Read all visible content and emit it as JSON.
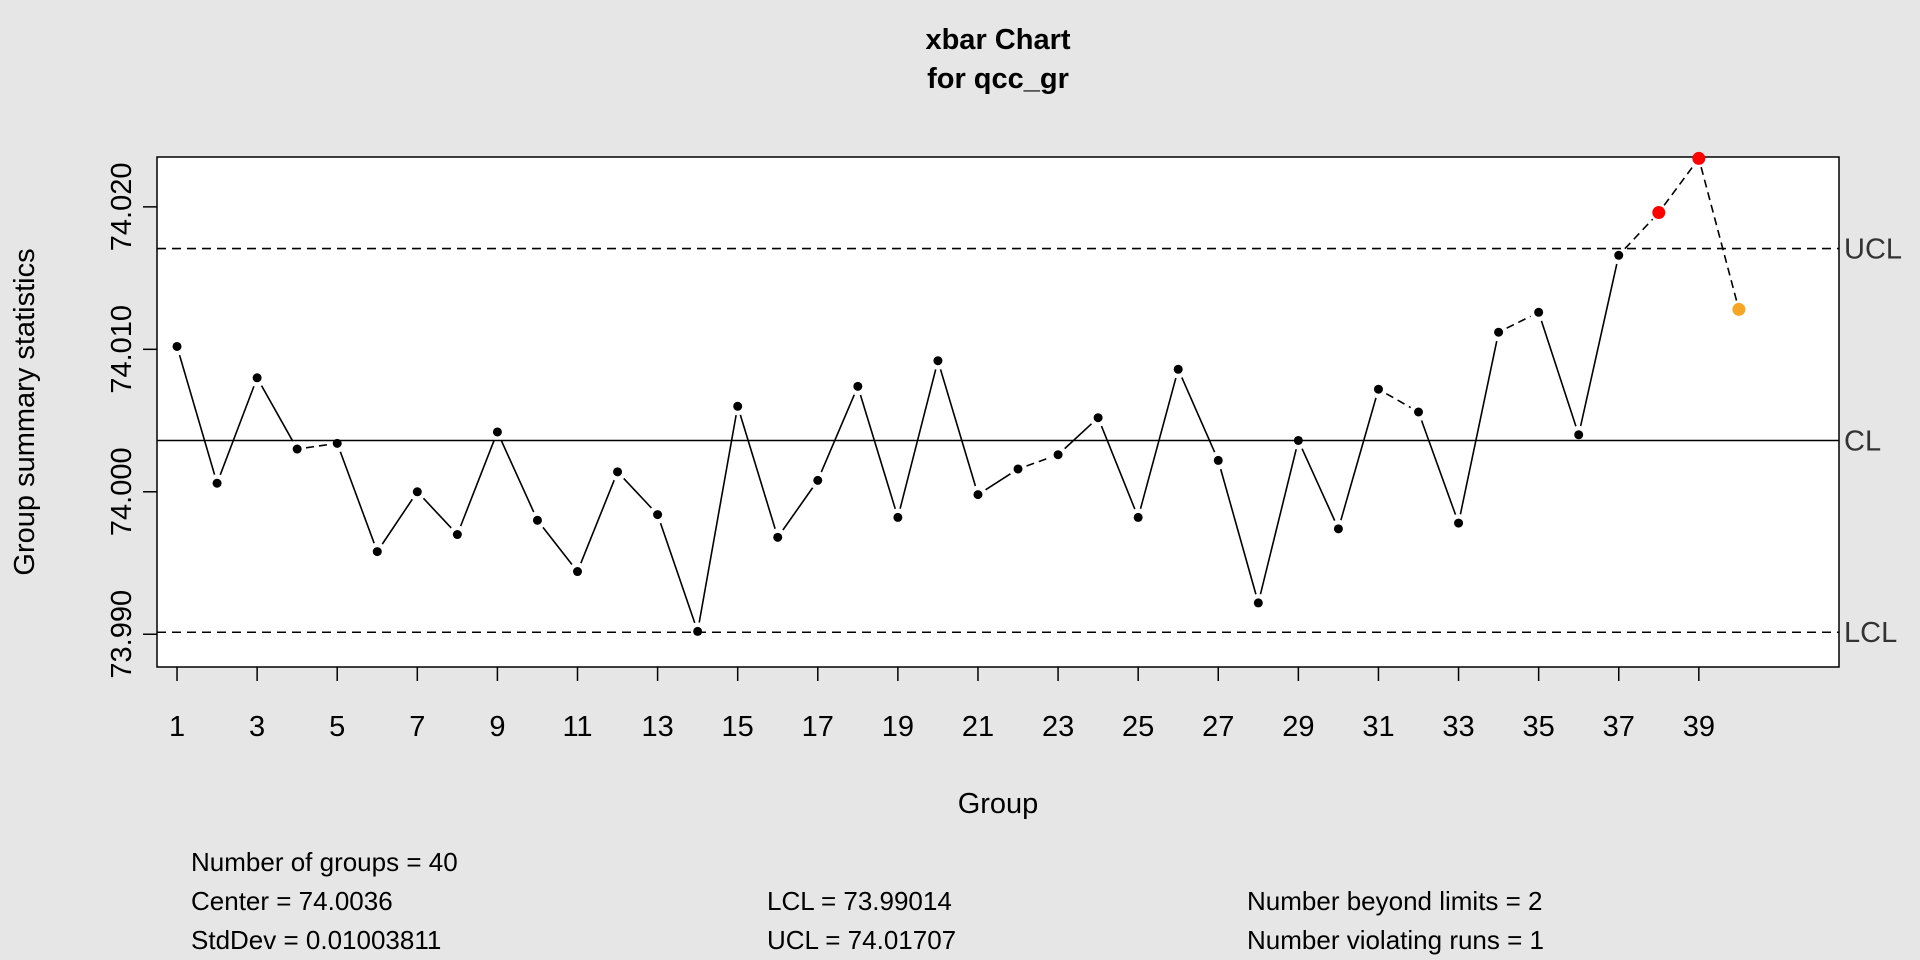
{
  "chart_data": {
    "type": "line",
    "title": "xbar Chart",
    "subtitle": "for qcc_gr",
    "xlabel": "Group",
    "ylabel": "Group summary statistics",
    "xlim": [
      0.5,
      42.5
    ],
    "ylim": [
      73.9877,
      74.0235
    ],
    "x_ticks": [
      1,
      3,
      5,
      7,
      9,
      11,
      13,
      15,
      17,
      19,
      21,
      23,
      25,
      27,
      29,
      31,
      33,
      35,
      37,
      39
    ],
    "y_ticks": [
      73.99,
      74.0,
      74.01,
      74.02
    ],
    "y_tick_labels": [
      "73.990",
      "74.000",
      "74.010",
      "74.020"
    ],
    "x": [
      1,
      2,
      3,
      4,
      5,
      6,
      7,
      8,
      9,
      10,
      11,
      12,
      13,
      14,
      15,
      16,
      17,
      18,
      19,
      20,
      21,
      22,
      23,
      24,
      25,
      26,
      27,
      28,
      29,
      30,
      31,
      32,
      33,
      34,
      35,
      36,
      37,
      38,
      39,
      40
    ],
    "values": [
      74.0102,
      74.0006,
      74.008,
      74.003,
      74.0034,
      73.9958,
      74.0,
      73.997,
      74.0042,
      73.998,
      73.9944,
      74.0014,
      73.9984,
      73.9902,
      74.006,
      73.9968,
      74.0008,
      74.0074,
      73.9982,
      74.0092,
      73.9998,
      74.0016,
      74.0026,
      74.0052,
      73.9982,
      74.0086,
      74.0022,
      73.9922,
      74.0036,
      73.9974,
      74.0072,
      74.0056,
      73.9978,
      74.0112,
      74.0126,
      74.004,
      74.0166,
      74.0196,
      74.0234,
      74.0128
    ],
    "point_status": [
      "normal",
      "normal",
      "normal",
      "normal",
      "normal",
      "normal",
      "normal",
      "normal",
      "normal",
      "normal",
      "normal",
      "normal",
      "normal",
      "normal",
      "normal",
      "normal",
      "normal",
      "normal",
      "normal",
      "normal",
      "normal",
      "normal",
      "normal",
      "normal",
      "normal",
      "normal",
      "normal",
      "normal",
      "normal",
      "normal",
      "normal",
      "normal",
      "normal",
      "normal",
      "normal",
      "normal",
      "normal",
      "beyond",
      "beyond",
      "violating"
    ],
    "status_colors": {
      "normal": "#000000",
      "beyond": "#ff0000",
      "violating": "#f5a623"
    },
    "center": 74.0036,
    "lcl": 73.99014,
    "ucl": 74.01707,
    "limit_labels": {
      "ucl": "UCL",
      "cl": "CL",
      "lcl": "LCL"
    },
    "grid": false
  },
  "stats": {
    "groups": "Number of groups = 40",
    "center": "Center = 74.0036",
    "stddev": "StdDev = 0.01003811",
    "lcl": "LCL = 73.99014",
    "ucl": "UCL = 74.01707",
    "beyond": "Number beyond limits = 2",
    "violating": "Number violating runs = 1"
  }
}
